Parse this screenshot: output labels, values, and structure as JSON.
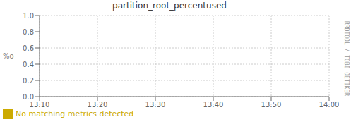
{
  "chart_data": {
    "type": "line",
    "title": "partition_root_percentused",
    "ylabel": "%o",
    "categories": [
      "13:10",
      "13:20",
      "13:30",
      "13:40",
      "13:50",
      "14:00"
    ],
    "series": [
      {
        "name": "No matching metrics detected",
        "color": "#ccaa00",
        "values": [
          1.0,
          1.0,
          1.0,
          1.0,
          1.0,
          1.0
        ]
      }
    ],
    "ylim": [
      0.0,
      1.0
    ],
    "yticks": [
      {
        "value": 0.0,
        "label": "0.0"
      },
      0.2,
      0.4,
      0.6,
      0.8,
      {
        "value": 1.0,
        "label": "1.0"
      }
    ],
    "grid": true,
    "legend": "lower left",
    "annotations": [
      "RRDTOOL / TOBI OETIKER"
    ]
  }
}
